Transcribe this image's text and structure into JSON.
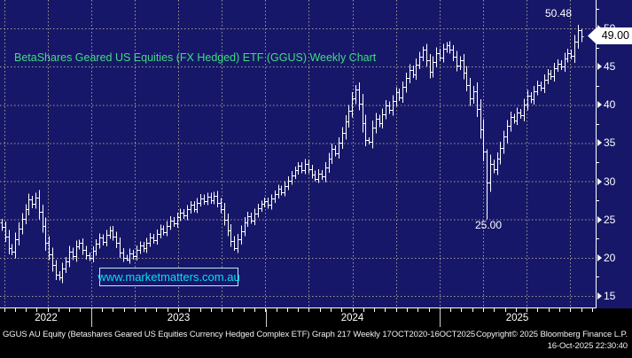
{
  "title": "BetaShares Geared US Equities (FX Hedged) ETF (GGUS) Weekly Chart",
  "watermark": {
    "text": "www.marketmatters.com.au"
  },
  "annotations": {
    "high_label": "50.48",
    "low_label": "25.00",
    "last_price_label": "49.00"
  },
  "footer": {
    "line1_left": "GGUS AU Equity (Betashares Geared US Equities Currency Hedged Complex ETF) Graph 217 Weekly 17OCT2020-16OCT2025",
    "line1_right": "Copyright© 2025 Bloomberg Finance L.P.",
    "line2_right": "16-Oct-2025 22:30:40"
  },
  "colors": {
    "background": "#171769",
    "bars": "#ffffff",
    "grid": "#a39d8e",
    "title_green": "#3fdc7f",
    "watermark_cyan": "#00e1f2",
    "axis_text": "#ffffff",
    "callout_bg": "#ffffff",
    "callout_text": "#000000"
  },
  "chart_data": {
    "type": "ohlc-bar",
    "frequency": "weekly",
    "title": "BetaShares Geared US Equities (FX Hedged) ETF (GGUS) Weekly Chart",
    "full_range_label": "17OCT2020-16OCT2025",
    "visible_range": "mid-2022 to 16-Oct-2025",
    "x_year_labels": [
      "2022",
      "2023",
      "2024",
      "2025"
    ],
    "y_ticks": [
      15,
      20,
      25,
      30,
      35,
      40,
      45,
      50
    ],
    "ylim": [
      13.5,
      53.7
    ],
    "grid": "dotted",
    "legend": "none",
    "high_annotation": 50.48,
    "low_annotation": 25.0,
    "last_price": 49.0,
    "weekly_closes": [
      24.0,
      22.8,
      21.3,
      20.8,
      22.4,
      23.8,
      25.1,
      26.3,
      27.6,
      27.0,
      27.9,
      26.0,
      24.2,
      22.0,
      20.5,
      19.0,
      17.8,
      17.4,
      18.6,
      19.5,
      20.8,
      20.2,
      21.5,
      21.9,
      21.0,
      20.3,
      20.0,
      20.9,
      21.8,
      22.6,
      22.1,
      23.0,
      23.6,
      22.8,
      21.9,
      20.7,
      20.0,
      19.8,
      20.6,
      20.2,
      21.0,
      21.6,
      21.2,
      22.0,
      22.7,
      22.3,
      23.1,
      23.8,
      23.4,
      24.2,
      24.9,
      24.5,
      25.3,
      25.9,
      25.5,
      26.3,
      26.9,
      26.4,
      27.2,
      27.8,
      27.4,
      28.0,
      27.5,
      28.1,
      27.2,
      26.4,
      25.0,
      23.6,
      22.2,
      21.3,
      22.4,
      23.5,
      24.6,
      25.4,
      24.9,
      25.8,
      26.5,
      27.0,
      27.4,
      26.9,
      27.7,
      28.3,
      29.0,
      28.6,
      29.4,
      30.1,
      30.8,
      31.4,
      32.0,
      31.5,
      32.3,
      31.6,
      30.9,
      30.3,
      31.0,
      30.6,
      31.8,
      33.0,
      34.2,
      33.7,
      35.0,
      36.3,
      37.8,
      39.2,
      40.8,
      42.0,
      40.2,
      37.6,
      35.4,
      35.2,
      37.0,
      38.2,
      37.6,
      38.8,
      39.9,
      39.3,
      40.5,
      41.6,
      41.0,
      42.3,
      43.5,
      44.6,
      44.0,
      45.3,
      46.3,
      47.2,
      45.8,
      44.3,
      45.6,
      46.8,
      46.2,
      47.3,
      47.8,
      47.2,
      46.3,
      45.1,
      45.8,
      44.2,
      42.6,
      40.8,
      41.8,
      39.5,
      36.8,
      33.9,
      29.8,
      32.3,
      31.6,
      33.0,
      34.4,
      35.8,
      37.2,
      38.4,
      38.0,
      39.0,
      38.6,
      40.0,
      41.2,
      40.7,
      41.8,
      42.6,
      42.2,
      43.3,
      44.1,
      43.7,
      44.8,
      45.4,
      45.0,
      46.1,
      46.8,
      46.4,
      48.2,
      49.8,
      49.0
    ],
    "bar_overrides": {
      "17": {
        "l": 17.0
      },
      "37": {
        "l": 19.6
      },
      "69": {
        "l": 20.9
      },
      "93": {
        "l": 30.0
      },
      "105": {
        "h": 42.6
      },
      "108": {
        "l": 34.6
      },
      "125": {
        "h": 47.6
      },
      "132": {
        "h": 48.2
      },
      "144": {
        "h": 34.2,
        "l": 25.0
      },
      "171": {
        "h": 50.48
      },
      "172": {
        "h": 49.9,
        "l": 48.2
      }
    }
  }
}
